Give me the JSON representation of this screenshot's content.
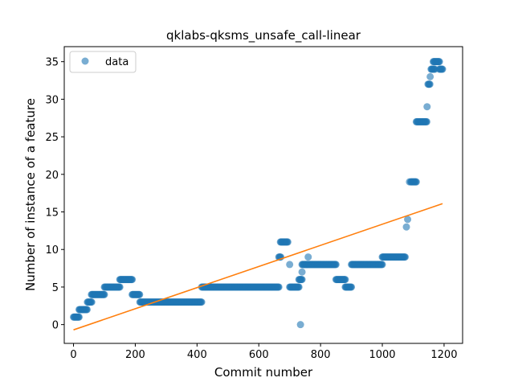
{
  "chart_data": {
    "type": "scatter",
    "title": "qklabs-qksms_unsafe_call-linear",
    "xlabel": "Commit number",
    "ylabel": "Number of instance of a feature",
    "xlim": [
      -30,
      1260
    ],
    "ylim": [
      -2.5,
      37
    ],
    "xticks": [
      0,
      200,
      400,
      600,
      800,
      1000,
      1200
    ],
    "yticks": [
      0,
      5,
      10,
      15,
      20,
      25,
      30,
      35
    ],
    "grid": false,
    "legend": {
      "position": "top-left",
      "entries": [
        {
          "label": "data",
          "marker": "circle"
        }
      ]
    },
    "colors": {
      "data": "#1f77b4",
      "fit": "#ff7f0e"
    },
    "series": [
      {
        "name": "data",
        "type": "scatter",
        "segments": [
          {
            "x_start": 0,
            "x_end": 18,
            "y": 1
          },
          {
            "x_start": 18,
            "x_end": 45,
            "y": 2
          },
          {
            "x_start": 45,
            "x_end": 60,
            "y": 3
          },
          {
            "x_start": 58,
            "x_end": 100,
            "y": 4
          },
          {
            "x_start": 100,
            "x_end": 150,
            "y": 5
          },
          {
            "x_start": 150,
            "x_end": 190,
            "y": 6
          },
          {
            "x_start": 190,
            "x_end": 215,
            "y": 4
          },
          {
            "x_start": 215,
            "x_end": 415,
            "y": 3
          },
          {
            "x_start": 415,
            "x_end": 665,
            "y": 5
          },
          {
            "x_start": 665,
            "x_end": 672,
            "y": 9
          },
          {
            "x_start": 670,
            "x_end": 695,
            "y": 11
          },
          {
            "x_start": 700,
            "x_end": 730,
            "y": 5
          },
          {
            "x_start": 730,
            "x_end": 740,
            "y": 6
          },
          {
            "x_start": 740,
            "x_end": 850,
            "y": 8
          },
          {
            "x_start": 850,
            "x_end": 880,
            "y": 6
          },
          {
            "x_start": 880,
            "x_end": 900,
            "y": 5
          },
          {
            "x_start": 900,
            "x_end": 1000,
            "y": 8
          },
          {
            "x_start": 1000,
            "x_end": 1075,
            "y": 9
          },
          {
            "x_start": 1092,
            "x_end": 1110,
            "y": 19
          },
          {
            "x_start": 1110,
            "x_end": 1145,
            "y": 27
          },
          {
            "x_start": 1148,
            "x_end": 1155,
            "y": 32
          },
          {
            "x_start": 1158,
            "x_end": 1170,
            "y": 34
          },
          {
            "x_start": 1165,
            "x_end": 1185,
            "y": 35
          },
          {
            "x_start": 1185,
            "x_end": 1195,
            "y": 34
          }
        ],
        "points": [
          {
            "x": 700,
            "y": 8
          },
          {
            "x": 735,
            "y": 0
          },
          {
            "x": 740,
            "y": 7
          },
          {
            "x": 760,
            "y": 9
          },
          {
            "x": 1078,
            "y": 13
          },
          {
            "x": 1082,
            "y": 14
          },
          {
            "x": 1088,
            "y": 19
          },
          {
            "x": 1145,
            "y": 29
          },
          {
            "x": 1155,
            "y": 33
          }
        ]
      },
      {
        "name": "fit",
        "type": "line",
        "x": [
          0,
          1195
        ],
        "y": [
          -0.7,
          16.1
        ]
      }
    ]
  }
}
